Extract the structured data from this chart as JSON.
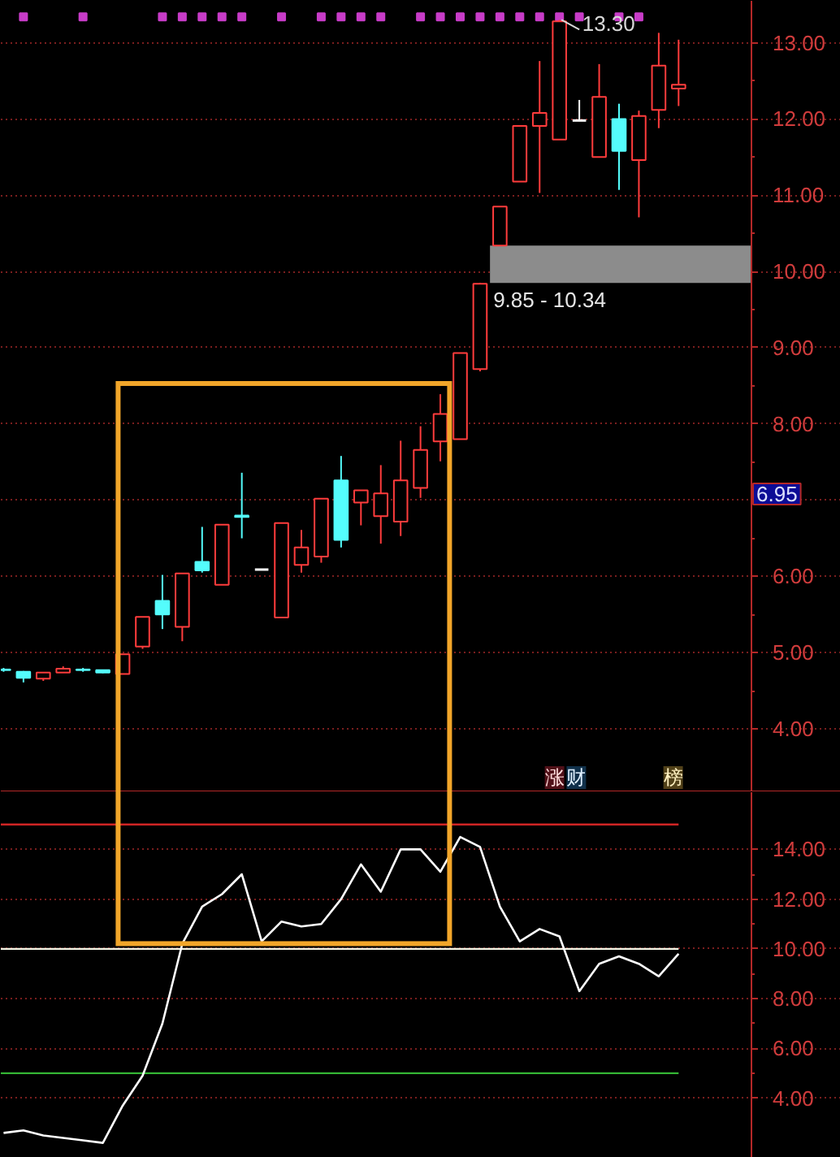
{
  "chart_data": [
    {
      "type": "candlestick",
      "categories": [
        null,
        null,
        null,
        null,
        null,
        null,
        null,
        null,
        null,
        null,
        null,
        null,
        null,
        null,
        null,
        null,
        null,
        null,
        null,
        null,
        null,
        null,
        null,
        null,
        null,
        null,
        null,
        null,
        null,
        null,
        null,
        null,
        null,
        null,
        null
      ],
      "ohlc": [
        [
          4.78,
          4.8,
          4.75,
          4.77
        ],
        [
          4.75,
          4.76,
          4.61,
          4.67
        ],
        [
          4.66,
          4.74,
          4.63,
          4.74
        ],
        [
          4.74,
          4.82,
          4.74,
          4.79
        ],
        [
          4.78,
          4.8,
          4.75,
          4.77
        ],
        [
          4.77,
          4.77,
          4.73,
          4.74
        ],
        [
          4.72,
          4.98,
          4.72,
          4.98
        ],
        [
          5.08,
          5.47,
          5.05,
          5.47
        ],
        [
          5.68,
          6.02,
          5.31,
          5.5
        ],
        [
          5.34,
          6.04,
          5.15,
          6.04
        ],
        [
          6.19,
          6.65,
          6.05,
          6.08
        ],
        [
          5.89,
          6.68,
          5.89,
          6.68
        ],
        [
          6.8,
          7.36,
          6.5,
          6.78
        ],
        [
          6.09,
          6.09,
          6.09,
          6.09
        ],
        [
          5.46,
          6.7,
          5.46,
          6.7
        ],
        [
          6.15,
          6.61,
          6.05,
          6.38
        ],
        [
          6.26,
          7.02,
          6.18,
          7.02
        ],
        [
          7.26,
          7.58,
          6.38,
          6.48
        ],
        [
          6.97,
          7.13,
          6.67,
          7.13
        ],
        [
          6.79,
          7.46,
          6.43,
          7.09
        ],
        [
          6.72,
          7.78,
          6.53,
          7.26
        ],
        [
          7.16,
          7.97,
          7.03,
          7.66
        ],
        [
          7.77,
          8.39,
          7.51,
          8.13
        ],
        [
          7.8,
          8.93,
          7.8,
          8.93
        ],
        [
          8.72,
          9.85,
          8.69,
          9.84
        ],
        [
          10.34,
          10.85,
          10.34,
          10.85
        ],
        [
          11.18,
          11.91,
          11.18,
          11.91
        ],
        [
          11.91,
          12.76,
          11.03,
          12.08
        ],
        [
          11.73,
          13.3,
          11.73,
          13.28
        ],
        [
          11.98,
          12.25,
          11.98,
          11.98
        ],
        [
          11.5,
          12.72,
          11.5,
          12.29
        ],
        [
          12.0,
          12.2,
          11.07,
          11.58
        ],
        [
          11.46,
          12.11,
          10.71,
          12.04
        ],
        [
          12.12,
          13.13,
          11.88,
          12.7
        ],
        [
          12.4,
          13.04,
          12.17,
          12.45
        ]
      ],
      "colors": [
        "#54fcfc",
        "#54fcfc",
        "#ff3c3c",
        "#ff3c3c",
        "#54fcfc",
        "#54fcfc",
        "#ff3c3c",
        "#ff3c3c",
        "#54fcfc",
        "#ff3c3c",
        "#54fcfc",
        "#ff3c3c",
        "#54fcfc",
        "#ffffff",
        "#ff3c3c",
        "#ff3c3c",
        "#ff3c3c",
        "#54fcfc",
        "#ff3c3c",
        "#ff3c3c",
        "#ff3c3c",
        "#ff3c3c",
        "#ff3c3c",
        "#ff3c3c",
        "#ff3c3c",
        "#ff3c3c",
        "#ff3c3c",
        "#ff3c3c",
        "#ff3c3c",
        "#ffffff",
        "#ff3c3c",
        "#54fcfc",
        "#ff3c3c",
        "#ff3c3c",
        "#ff3c3c"
      ],
      "series": [
        {
          "type": "scatter",
          "color": "#c83cc8",
          "marker": "square",
          "values": [
            null,
            13.34,
            null,
            null,
            13.34,
            null,
            null,
            null,
            13.34,
            13.34,
            13.34,
            13.34,
            13.34,
            null,
            13.34,
            null,
            13.34,
            13.34,
            13.34,
            13.34,
            null,
            13.34,
            13.34,
            13.34,
            13.34,
            13.34,
            13.34,
            13.34,
            13.34,
            13.34,
            null,
            13.34,
            13.34,
            null,
            null
          ]
        }
      ],
      "ylim": [
        3.17,
        13.55
      ],
      "yticks": [
        {
          "value": 4,
          "label": "4.00"
        },
        {
          "value": 5,
          "label": "5.00"
        },
        {
          "value": 6,
          "label": "6.00"
        },
        {
          "value": 7,
          "label": null
        },
        {
          "value": 8,
          "label": "8.00"
        },
        {
          "value": 9,
          "label": "9.00"
        },
        {
          "value": 10,
          "label": "10.00"
        },
        {
          "value": 11,
          "label": "11.00"
        },
        {
          "value": 12,
          "label": "12.00"
        },
        {
          "value": 13,
          "label": "13.00"
        }
      ],
      "grid": "y",
      "tick_labels": "y",
      "bands": [
        {
          "axis": "y",
          "from": 9.85,
          "to": 10.34,
          "label": "9.85 - 10.34",
          "color": "#8c8c8c"
        }
      ],
      "annotations": [
        {
          "text": "13.30",
          "y": 13.3
        },
        "6.95",
        "涨",
        "财",
        "榜"
      ]
    },
    {
      "type": "line",
      "categories": [
        null,
        null,
        null,
        null,
        null,
        null,
        null,
        null,
        null,
        null,
        null,
        null,
        null,
        null,
        null,
        null,
        null,
        null,
        null,
        null,
        null,
        null,
        null,
        null,
        null,
        null,
        null,
        null,
        null,
        null,
        null,
        null,
        null,
        null,
        null
      ],
      "series": [
        {
          "color": "#ffffff",
          "values": [
            2.6,
            2.7,
            2.5,
            2.4,
            2.3,
            2.2,
            3.7,
            4.9,
            7.0,
            10.2,
            11.7,
            12.2,
            13.0,
            10.3,
            11.1,
            10.9,
            11.0,
            12.0,
            13.4,
            12.3,
            14.0,
            14.0,
            13.1,
            14.5,
            14.1,
            11.7,
            10.3,
            10.8,
            10.5,
            8.3,
            9.4,
            9.7,
            9.4,
            8.9,
            9.8
          ]
        }
      ],
      "ylim": [
        1.6,
        16.3
      ],
      "yticks": [
        {
          "value": 4,
          "label": "4.00"
        },
        {
          "value": 6,
          "label": "6.00"
        },
        {
          "value": 8,
          "label": "8.00"
        },
        {
          "value": 10,
          "label": "10.00"
        },
        {
          "value": 12,
          "label": "12.00"
        },
        {
          "value": 14,
          "label": "14.00"
        }
      ],
      "grid": "y",
      "tick_labels": "y",
      "ref_lines": [
        {
          "axis": "y",
          "value": 15,
          "color": "#d02424"
        },
        {
          "axis": "y",
          "value": 10,
          "color": "#f4f4e4"
        },
        {
          "axis": "y",
          "value": 5,
          "color": "#34b434"
        }
      ]
    }
  ]
}
